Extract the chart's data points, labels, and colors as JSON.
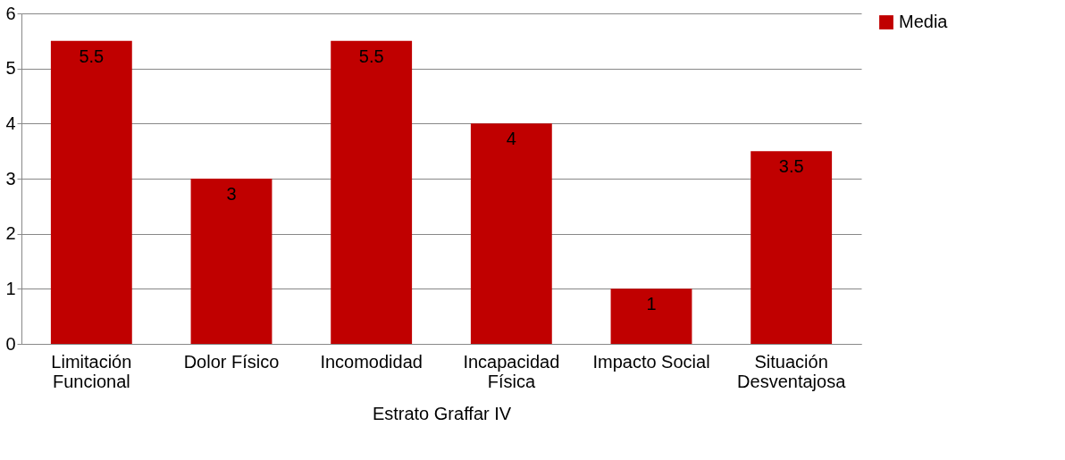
{
  "chart_data": {
    "type": "bar",
    "xlabel": "Estrato Graffar IV",
    "categories": [
      "Limitación\nFuncional",
      "Dolor Físico",
      "Incomodidad",
      "Incapacidad\nFísica",
      "Impacto Social",
      "Situación\nDesventajosa"
    ],
    "series": [
      {
        "name": "Media",
        "color": "#c00000",
        "values": [
          5.5,
          3,
          5.5,
          4,
          1,
          3.5
        ]
      }
    ],
    "ylim": [
      0,
      6
    ],
    "yticks": [
      0,
      1,
      2,
      3,
      4,
      5,
      6
    ],
    "grid": "y",
    "legend": "right",
    "data_labels": true
  }
}
